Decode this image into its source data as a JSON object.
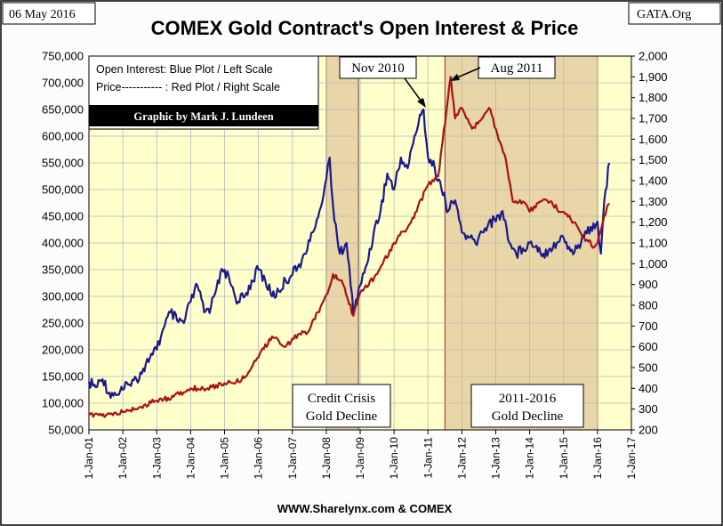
{
  "date_label": "06 May 2016",
  "corner_label": "GATA.Org",
  "chart_data": {
    "type": "line",
    "title": "COMEX Gold Contract's Open Interest & Price",
    "source": "WWW.Sharelynx.com & COMEX",
    "x_tick_labels": [
      "1-Jan-01",
      "1-Jan-02",
      "1-Jan-03",
      "1-Jan-04",
      "1-Jan-05",
      "1-Jan-06",
      "1-Jan-07",
      "1-Jan-08",
      "1-Jan-09",
      "1-Jan-10",
      "1-Jan-11",
      "1-Jan-12",
      "1-Jan-13",
      "1-Jan-14",
      "1-Jan-15",
      "1-Jan-16",
      "1-Jan-17"
    ],
    "xlim": [
      2001,
      2017
    ],
    "left_axis": {
      "range": [
        50000,
        750000
      ],
      "tick_values": [
        50000,
        100000,
        150000,
        200000,
        250000,
        300000,
        350000,
        400000,
        450000,
        500000,
        550000,
        600000,
        650000,
        700000,
        750000
      ],
      "tick_labels": [
        "50,000",
        "100,000",
        "150,000",
        "200,000",
        "250,000",
        "300,000",
        "350,000",
        "400,000",
        "450,000",
        "500,000",
        "550,000",
        "600,000",
        "650,000",
        "700,000",
        "750,000"
      ]
    },
    "right_axis": {
      "range": [
        200,
        2000
      ],
      "tick_values": [
        200,
        300,
        400,
        500,
        600,
        700,
        800,
        900,
        1000,
        1100,
        1200,
        1300,
        1400,
        1500,
        1600,
        1700,
        1800,
        1900,
        2000
      ],
      "tick_labels": [
        "200",
        "300",
        "400",
        "500",
        "600",
        "700",
        "800",
        "900",
        "1,000",
        "1,100",
        "1,200",
        "1,300",
        "1,400",
        "1,500",
        "1,600",
        "1,700",
        "1,800",
        "1,900",
        "2,000"
      ]
    },
    "series": [
      {
        "name": "Open Interest",
        "axis": "left",
        "color": "#1a1a8c",
        "x": [
          2001.0,
          2001.2,
          2001.4,
          2001.6,
          2001.8,
          2002.0,
          2002.2,
          2002.4,
          2002.6,
          2002.8,
          2003.0,
          2003.2,
          2003.4,
          2003.6,
          2003.8,
          2004.0,
          2004.2,
          2004.4,
          2004.6,
          2004.8,
          2005.0,
          2005.2,
          2005.4,
          2005.6,
          2005.8,
          2006.0,
          2006.2,
          2006.4,
          2006.6,
          2006.8,
          2007.0,
          2007.2,
          2007.4,
          2007.6,
          2007.8,
          2008.0,
          2008.1,
          2008.2,
          2008.4,
          2008.6,
          2008.8,
          2009.0,
          2009.2,
          2009.4,
          2009.6,
          2009.8,
          2010.0,
          2010.2,
          2010.4,
          2010.6,
          2010.8,
          2010.87,
          2011.0,
          2011.2,
          2011.4,
          2011.6,
          2011.8,
          2012.0,
          2012.2,
          2012.4,
          2012.6,
          2012.8,
          2013.0,
          2013.2,
          2013.4,
          2013.6,
          2013.8,
          2014.0,
          2014.2,
          2014.4,
          2014.6,
          2014.8,
          2015.0,
          2015.2,
          2015.4,
          2015.6,
          2015.8,
          2016.0,
          2016.1,
          2016.2,
          2016.35
        ],
        "values": [
          140000,
          130000,
          145000,
          120000,
          115000,
          125000,
          135000,
          145000,
          165000,
          185000,
          200000,
          240000,
          270000,
          255000,
          250000,
          290000,
          320000,
          270000,
          280000,
          330000,
          350000,
          320000,
          290000,
          300000,
          330000,
          350000,
          330000,
          300000,
          310000,
          330000,
          340000,
          360000,
          380000,
          420000,
          460000,
          520000,
          560000,
          470000,
          380000,
          400000,
          270000,
          320000,
          360000,
          420000,
          460000,
          530000,
          500000,
          560000,
          540000,
          600000,
          640000,
          650000,
          560000,
          540000,
          500000,
          460000,
          480000,
          420000,
          410000,
          400000,
          420000,
          440000,
          440000,
          460000,
          400000,
          380000,
          390000,
          400000,
          395000,
          380000,
          390000,
          400000,
          410000,
          385000,
          390000,
          410000,
          430000,
          440000,
          380000,
          480000,
          550000
        ]
      },
      {
        "name": "Price",
        "axis": "right",
        "color": "#aa1111",
        "x": [
          2001.0,
          2001.5,
          2002.0,
          2002.5,
          2003.0,
          2003.5,
          2004.0,
          2004.5,
          2005.0,
          2005.5,
          2006.0,
          2006.4,
          2006.8,
          2007.0,
          2007.5,
          2008.0,
          2008.2,
          2008.5,
          2008.8,
          2009.0,
          2009.5,
          2010.0,
          2010.5,
          2011.0,
          2011.3,
          2011.67,
          2011.8,
          2012.0,
          2012.3,
          2012.6,
          2012.8,
          2013.0,
          2013.3,
          2013.5,
          2013.8,
          2014.0,
          2014.3,
          2014.6,
          2014.9,
          2015.0,
          2015.3,
          2015.6,
          2015.9,
          2016.0,
          2016.2,
          2016.35
        ],
        "values": [
          270,
          270,
          285,
          310,
          340,
          360,
          400,
          400,
          425,
          440,
          550,
          650,
          600,
          640,
          680,
          850,
          950,
          900,
          750,
          860,
          950,
          1100,
          1200,
          1380,
          1420,
          1900,
          1700,
          1750,
          1650,
          1700,
          1750,
          1650,
          1500,
          1300,
          1300,
          1250,
          1300,
          1300,
          1250,
          1250,
          1200,
          1130,
          1080,
          1100,
          1230,
          1290
        ]
      }
    ],
    "shaded_regions": [
      {
        "start": 2008.0,
        "end": 2008.95
      },
      {
        "start": 2011.5,
        "end": 2016.0
      }
    ],
    "annotations": {
      "credit_crisis": [
        "Credit Crisis",
        "Gold Decline"
      ],
      "decline_2011": [
        "2011-2016",
        "Gold Decline"
      ],
      "nov_2010": "Nov 2010",
      "aug_2011": "Aug 2011"
    },
    "legend": {
      "line1": "Open Interest:  Blue Plot / Left Scale",
      "line2": "Price----------- : Red Plot / Right Scale",
      "credit": "Graphic by Mark J. Lundeen"
    }
  }
}
